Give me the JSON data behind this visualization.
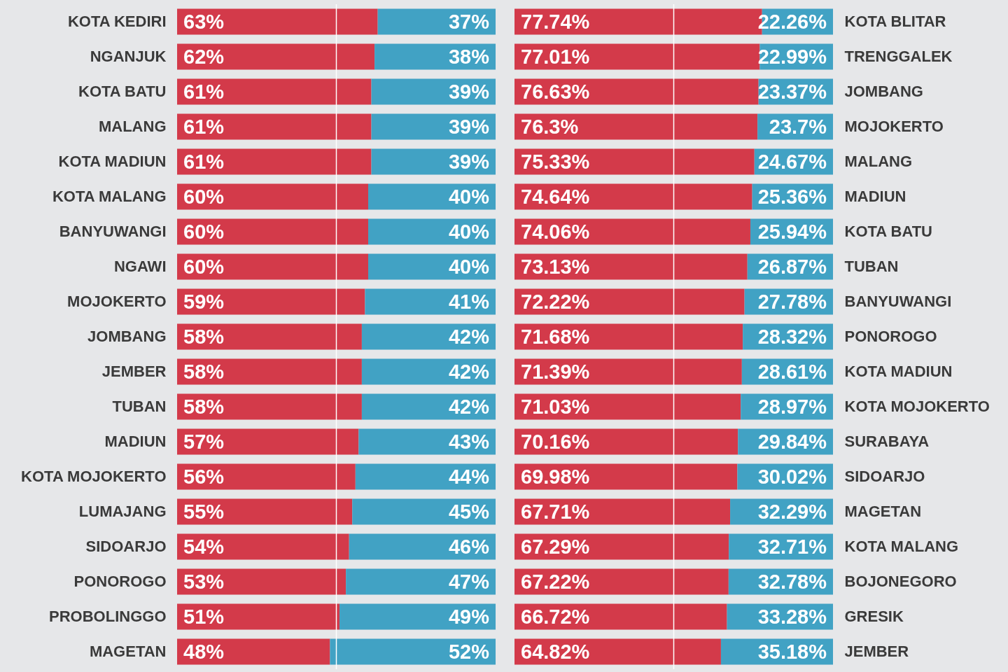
{
  "chart_data": [
    {
      "type": "bar",
      "orientation": "horizontal",
      "stacked": true,
      "tick_labels": "y",
      "xlim": [
        0,
        100
      ],
      "categories": [
        "KOTA KEDIRI",
        "NGANJUK",
        "KOTA BATU",
        "MALANG",
        "KOTA MADIUN",
        "KOTA MALANG",
        "BANYUWANGI",
        "NGAWI",
        "MOJOKERTO",
        "JOMBANG",
        "JEMBER",
        "TUBAN",
        "MADIUN",
        "KOTA MOJOKERTO",
        "LUMAJANG",
        "SIDOARJO",
        "PONOROGO",
        "PROBOLINGGO",
        "MAGETAN"
      ],
      "series": [
        {
          "color": "#d33a4a",
          "values": [
            63,
            62,
            61,
            61,
            61,
            60,
            60,
            60,
            59,
            58,
            58,
            58,
            57,
            56,
            55,
            54,
            53,
            51,
            48
          ],
          "value_labels": [
            "63%",
            "62%",
            "61%",
            "61%",
            "61%",
            "60%",
            "60%",
            "60%",
            "59%",
            "58%",
            "58%",
            "58%",
            "57%",
            "56%",
            "55%",
            "54%",
            "53%",
            "51%",
            "48%"
          ]
        },
        {
          "color": "#41a2c4",
          "values": [
            37,
            38,
            39,
            39,
            39,
            40,
            40,
            40,
            41,
            42,
            42,
            42,
            43,
            44,
            45,
            46,
            47,
            49,
            52
          ],
          "value_labels": [
            "37%",
            "38%",
            "39%",
            "39%",
            "39%",
            "40%",
            "40%",
            "40%",
            "41%",
            "42%",
            "42%",
            "42%",
            "43%",
            "44%",
            "45%",
            "46%",
            "47%",
            "49%",
            "52%"
          ]
        }
      ],
      "ref_lines": [
        {
          "axis": "x",
          "value": 50,
          "color": "#ffffff"
        }
      ]
    },
    {
      "type": "bar",
      "orientation": "horizontal",
      "stacked": true,
      "tick_labels": "y",
      "xlim": [
        0,
        100
      ],
      "categories": [
        "KOTA BLITAR",
        "TRENGGALEK",
        "JOMBANG",
        "MOJOKERTO",
        "MALANG",
        "MADIUN",
        "KOTA BATU",
        "TUBAN",
        "BANYUWANGI",
        "PONOROGO",
        "KOTA MADIUN",
        "KOTA MOJOKERTO",
        "SURABAYA",
        "SIDOARJO",
        "MAGETAN",
        "KOTA MALANG",
        "BOJONEGORO",
        "GRESIK",
        "JEMBER"
      ],
      "series": [
        {
          "color": "#d33a4a",
          "values": [
            77.74,
            77.01,
            76.63,
            76.3,
            75.33,
            74.64,
            74.06,
            73.13,
            72.22,
            71.68,
            71.39,
            71.03,
            70.16,
            69.98,
            67.71,
            67.29,
            67.22,
            66.72,
            64.82
          ],
          "value_labels": [
            "77.74%",
            "77.01%",
            "76.63%",
            "76.3%",
            "75.33%",
            "74.64%",
            "74.06%",
            "73.13%",
            "72.22%",
            "71.68%",
            "71.39%",
            "71.03%",
            "70.16%",
            "69.98%",
            "67.71%",
            "67.29%",
            "67.22%",
            "66.72%",
            "64.82%"
          ]
        },
        {
          "color": "#41a2c4",
          "values": [
            22.26,
            22.99,
            23.37,
            23.7,
            24.67,
            25.36,
            25.94,
            26.87,
            27.78,
            28.32,
            28.61,
            28.97,
            29.84,
            30.02,
            32.29,
            32.71,
            32.78,
            33.28,
            35.18
          ],
          "value_labels": [
            "22.26%",
            "22.99%",
            "23.37%",
            "23.7%",
            "24.67%",
            "25.36%",
            "25.94%",
            "26.87%",
            "27.78%",
            "28.32%",
            "28.61%",
            "28.97%",
            "29.84%",
            "30.02%",
            "32.29%",
            "32.71%",
            "32.78%",
            "33.28%",
            "35.18%"
          ]
        }
      ],
      "ref_lines": [
        {
          "axis": "x",
          "value": 50,
          "color": "#ffffff"
        }
      ]
    }
  ]
}
